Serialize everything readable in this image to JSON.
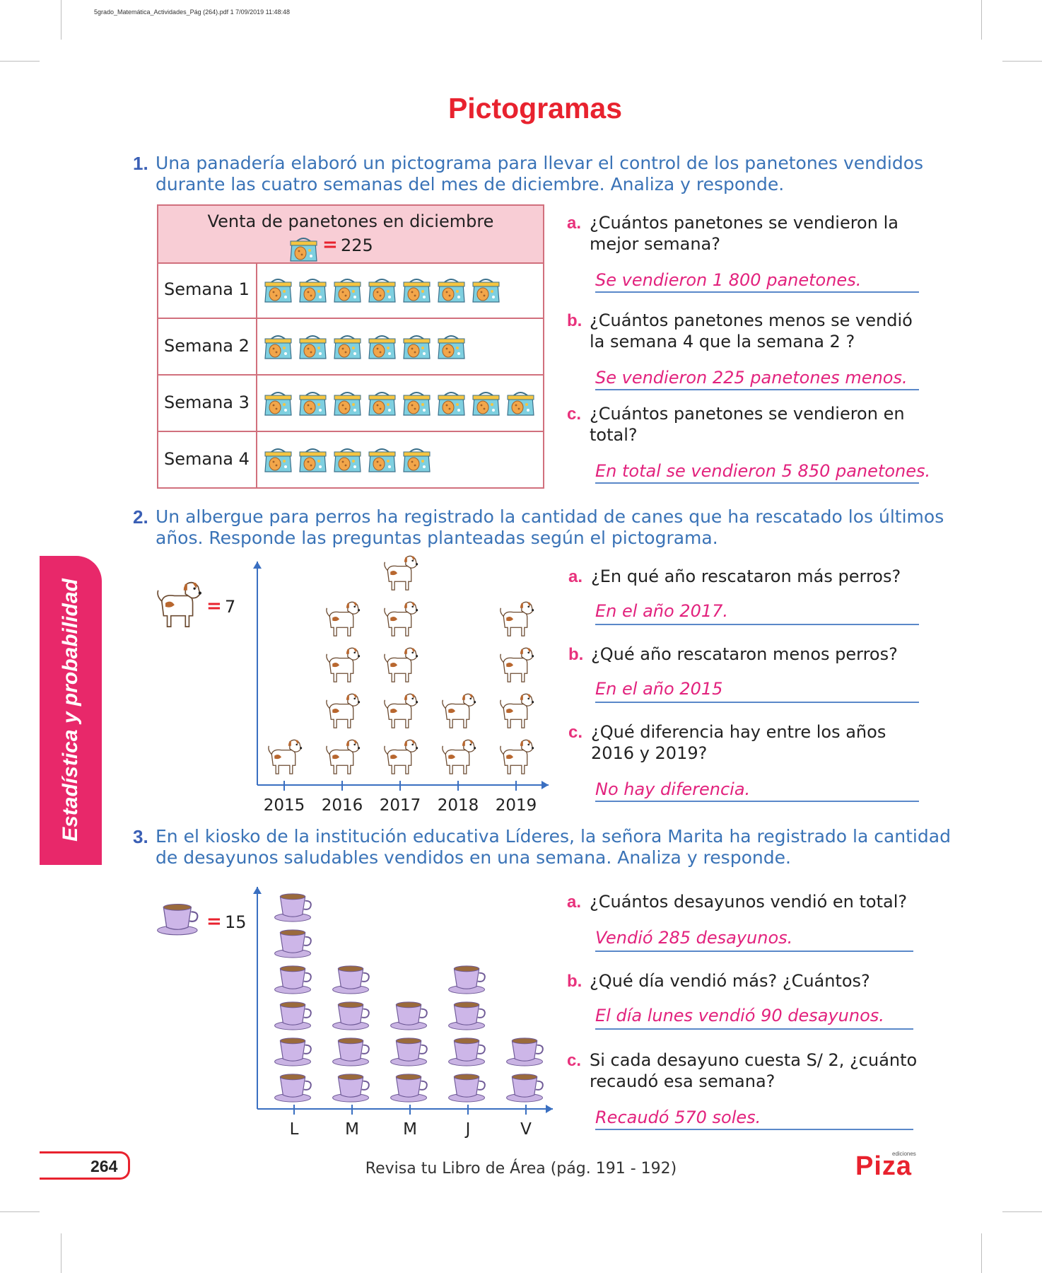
{
  "header": {
    "meta": "5grado_Matemática_Actividades_Pág (264).pdf   1   7/09/2019   11:48:48"
  },
  "title": "Pictogramas",
  "side_tab": "Estadística y probabilidad",
  "exercise1": {
    "number": "1.",
    "text_l1": "Una panadería elaboró un pictograma para llevar el control de los panetones vendidos",
    "text_l2": "durante las cuatro semanas del mes de diciembre. Analiza y responde.",
    "table": {
      "title": "Venta de panetones en diciembre",
      "key_eq": "=",
      "key_value": "225",
      "rows": [
        {
          "label": "Semana 1",
          "count": 7
        },
        {
          "label": "Semana 2",
          "count": 6
        },
        {
          "label": "Semana 3",
          "count": 8
        },
        {
          "label": "Semana 4",
          "count": 5
        }
      ]
    },
    "questions": [
      {
        "letter": "a.",
        "l1": "¿Cuántos panetones se vendieron la",
        "l2": "mejor semana?",
        "answer": "Se vendieron 1 800 panetones."
      },
      {
        "letter": "b.",
        "l1": "¿Cuántos panetones menos se vendió",
        "l2": "la semana 4 que la semana 2 ?",
        "answer": "Se vendieron 225 panetones menos."
      },
      {
        "letter": "c.",
        "l1": "¿Cuántos panetones se vendieron en",
        "l2": "total?",
        "answer": "En total se vendieron 5 850 panetones."
      }
    ]
  },
  "exercise2": {
    "number": "2.",
    "text_l1": "Un albergue para perros ha registrado la cantidad de canes que ha rescatado los últimos",
    "text_l2": "años. Responde las preguntas planteadas según el pictograma.",
    "key_eq": "=",
    "key_value": "7",
    "chart_data": {
      "type": "bar",
      "categories": [
        "2015",
        "2016",
        "2017",
        "2018",
        "2019"
      ],
      "values": [
        1,
        4,
        5,
        2,
        4
      ],
      "icon": "dog-icon"
    },
    "questions": [
      {
        "letter": "a.",
        "l1": "¿En qué año rescataron más perros?",
        "l2": "",
        "answer": "En el año 2017."
      },
      {
        "letter": "b.",
        "l1": "¿Qué año rescataron menos perros?",
        "l2": "",
        "answer": "En el año 2015"
      },
      {
        "letter": "c.",
        "l1": "¿Qué diferencia hay entre los años",
        "l2": "2016 y 2019?",
        "answer": "No hay diferencia."
      }
    ]
  },
  "exercise3": {
    "number": "3.",
    "text_l1": "En el kiosko de la institución educativa Líderes, la señora Marita ha registrado la cantidad",
    "text_l2": "de desayunos saludables vendidos en una semana. Analiza y responde.",
    "key_eq": "=",
    "key_value": "15",
    "chart_data": {
      "type": "bar",
      "categories": [
        "L",
        "M",
        "M",
        "J",
        "V"
      ],
      "values": [
        6,
        4,
        3,
        4,
        2
      ],
      "icon": "cup-icon"
    },
    "questions": [
      {
        "letter": "a.",
        "l1": "¿Cuántos desayunos vendió en total?",
        "l2": "",
        "answer": "Vendió 285 desayunos."
      },
      {
        "letter": "b.",
        "l1": "¿Qué día vendió más? ¿Cuántos?",
        "l2": "",
        "answer": "El día lunes vendió 90 desayunos."
      },
      {
        "letter": "c.",
        "l1": "Si cada desayuno cuesta S/ 2, ¿cuánto",
        "l2": "recaudó esa semana?",
        "answer": "Recaudó 570 soles."
      }
    ]
  },
  "footer": {
    "page_number": "264",
    "text": "Revisa tu Libro de Área (pág. 191 - 192)",
    "logo": "Piza",
    "logo_small": "ediciones"
  },
  "colors": {
    "title_red": "#e8222e",
    "exercise_blue": "#3a73b7",
    "answer_pink": "#e2227d",
    "tab_pink": "#e8286a"
  }
}
